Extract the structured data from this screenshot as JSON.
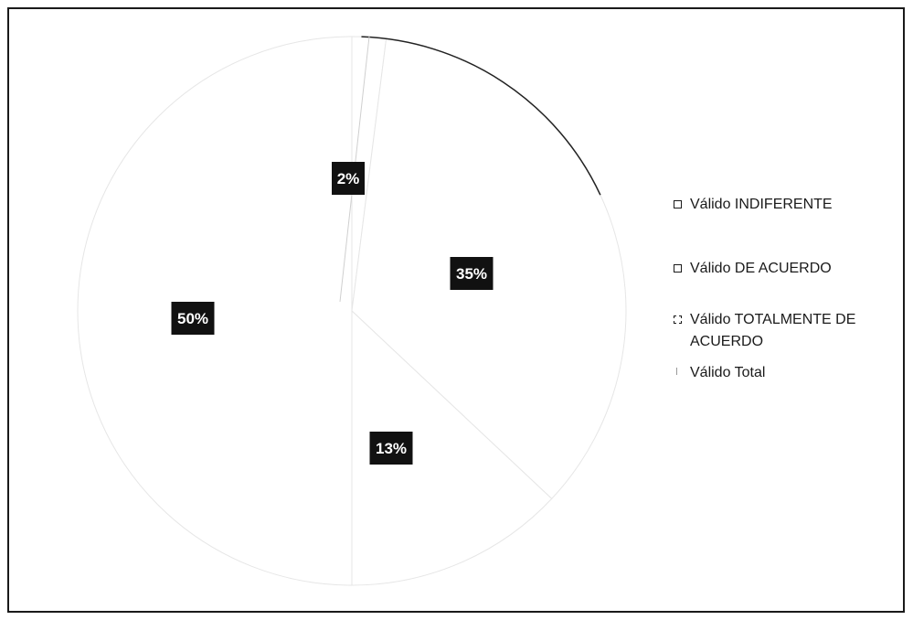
{
  "chart_data": {
    "type": "pie",
    "categories": [
      "Válido INDIFERENTE",
      "Válido DE ACUERDO",
      "Válido TOTALMENTE DE ACUERDO",
      "Válido Total"
    ],
    "values": [
      2,
      35,
      13,
      50
    ],
    "data_labels": [
      "2%",
      "35%",
      "13%",
      "50%"
    ],
    "legend_position": "right",
    "colors": [
      "#ffffff",
      "#ffffff",
      "#ffffff",
      "#ffffff"
    ],
    "label_background": "#111111",
    "label_color": "#ffffff"
  },
  "legend": {
    "items": [
      {
        "label": "Válido INDIFERENTE",
        "swatch": "square"
      },
      {
        "label": "Válido DE ACUERDO",
        "swatch": "square"
      },
      {
        "label": "Válido TOTALMENTE DE ACUERDO",
        "swatch": "dashed-square"
      },
      {
        "label": "Válido Total",
        "swatch": "tick"
      }
    ]
  }
}
